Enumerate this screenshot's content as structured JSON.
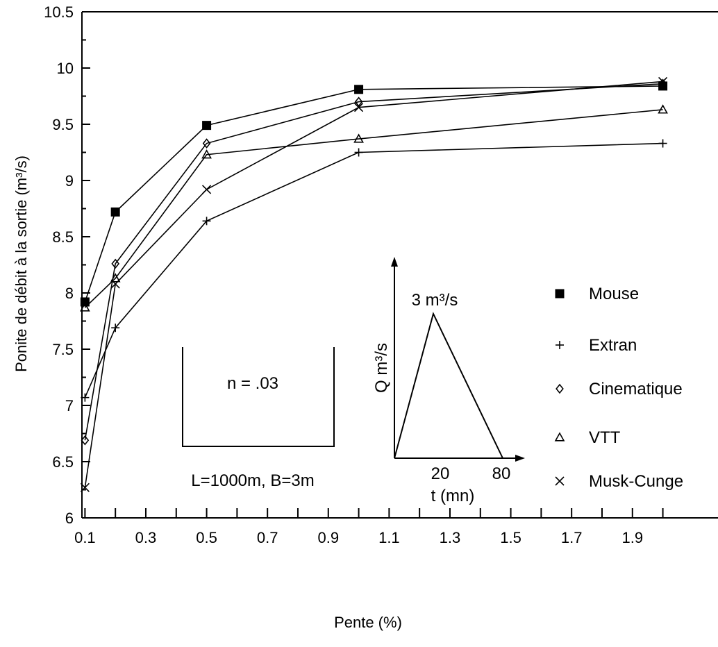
{
  "chart_data": {
    "type": "line",
    "title": "",
    "xlabel": "Pente (%)",
    "ylabel": "Ponite de débit à la sortie (m³/s)",
    "xlim": [
      0,
      2.05
    ],
    "ylim": [
      6,
      10.5
    ],
    "xticks": [
      "0.1",
      "0.3",
      "0.5",
      "0.7",
      "0.9",
      "1.1",
      "1.3",
      "1.5",
      "1.7",
      "1.9"
    ],
    "yticks": [
      "6",
      "6.5",
      "7",
      "7.5",
      "8",
      "8.5",
      "9",
      "9.5",
      "10",
      "10.5"
    ],
    "x": [
      0.1,
      0.2,
      0.5,
      1.0,
      2.0
    ],
    "legend_position": "right",
    "series": [
      {
        "name": "Mouse",
        "marker": "square",
        "values": [
          7.92,
          8.72,
          9.49,
          9.81,
          9.84
        ]
      },
      {
        "name": "Extran",
        "marker": "plus",
        "values": [
          7.07,
          7.69,
          8.64,
          9.25,
          9.33
        ]
      },
      {
        "name": "Cinematique",
        "marker": "diamond",
        "values": [
          6.69,
          8.26,
          9.33,
          9.7,
          9.86
        ]
      },
      {
        "name": "VTT",
        "marker": "triangle",
        "values": [
          7.87,
          8.13,
          9.23,
          9.37,
          9.63
        ]
      },
      {
        "name": "Musk-Cunge",
        "marker": "cross",
        "values": [
          6.27,
          8.08,
          8.92,
          9.65,
          9.88
        ]
      }
    ],
    "annotations": {
      "channel_n": "n = .03",
      "channel_dims": "L=1000m, B=3m",
      "hydrograph_peak": "3 m³/s",
      "hydrograph_ylabel": "Q m³/s",
      "hydrograph_xlabel": "t (mn)",
      "hydrograph_tick_1": "20",
      "hydrograph_tick_2": "80"
    }
  }
}
